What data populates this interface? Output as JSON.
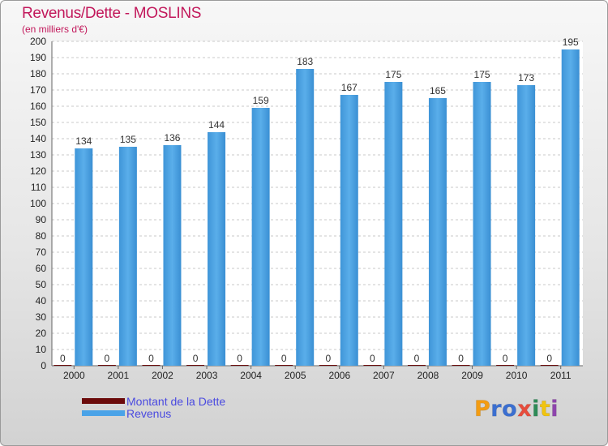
{
  "chart_data": {
    "type": "bar",
    "title": "Revenus/Dette - MOSLINS",
    "subtitle": "(en milliers d'€)",
    "categories": [
      "2000",
      "2001",
      "2002",
      "2003",
      "2004",
      "2005",
      "2006",
      "2007",
      "2008",
      "2009",
      "2010",
      "2011"
    ],
    "series": [
      {
        "name": "Montant de la Dette",
        "color": "#6b0a0a",
        "values": [
          0,
          0,
          0,
          0,
          0,
          0,
          0,
          0,
          0,
          0,
          0,
          0
        ]
      },
      {
        "name": "Revenus",
        "color": "#4aa3e8",
        "values": [
          134,
          135,
          136,
          144,
          159,
          183,
          167,
          175,
          165,
          175,
          173,
          195
        ]
      }
    ],
    "ylim": [
      0,
      200
    ],
    "yticks": [
      0,
      10,
      20,
      30,
      40,
      50,
      60,
      70,
      80,
      90,
      100,
      110,
      120,
      130,
      140,
      150,
      160,
      170,
      180,
      190,
      200
    ],
    "grid": "horizontal dashed",
    "legend": "bottom-left"
  },
  "logo": {
    "text": "Proxiti",
    "letters": [
      {
        "ch": "P",
        "color": "#f39c12"
      },
      {
        "ch": "r",
        "color": "#3b6fd1"
      },
      {
        "ch": "o",
        "color": "#3b6fd1"
      },
      {
        "ch": "x",
        "color": "#e74c3c"
      },
      {
        "ch": "i",
        "color": "#2e8b57"
      },
      {
        "ch": "t",
        "color": "#f1c40f"
      },
      {
        "ch": "i",
        "color": "#8e44ad"
      }
    ]
  }
}
